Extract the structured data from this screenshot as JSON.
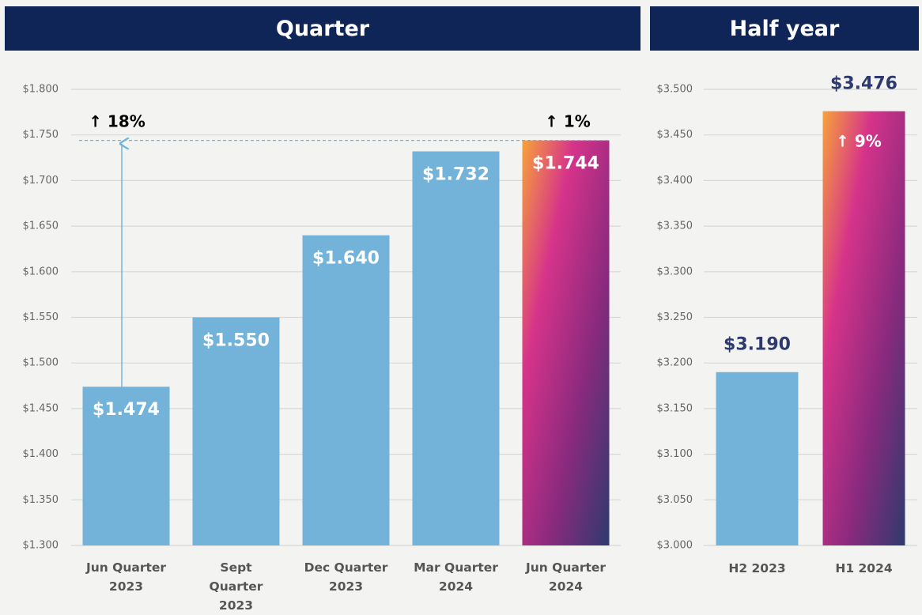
{
  "chart_data": [
    {
      "type": "bar",
      "title": "Quarter",
      "categories": [
        "Jun Quarter 2023",
        "Sept Quarter 2023",
        "Dec Quarter 2023",
        "Mar Quarter 2024",
        "Jun Quarter 2024"
      ],
      "values": [
        1.474,
        1.55,
        1.64,
        1.732,
        1.744
      ],
      "value_labels": [
        "$1.474",
        "$1.550",
        "$1.640",
        "$1.732",
        "$1.744"
      ],
      "colors": [
        "#74b3d9",
        "#74b3d9",
        "#74b3d9",
        "#74b3d9",
        "#d6338a"
      ],
      "ylim": [
        1.3,
        1.8
      ],
      "yticks": [
        {
          "value": 1.3,
          "label": "$1.300"
        },
        {
          "value": 1.35,
          "label": "$1.350"
        },
        {
          "value": 1.4,
          "label": "$1.400"
        },
        {
          "value": 1.45,
          "label": "$1.450"
        },
        {
          "value": 1.5,
          "label": "$1.500"
        },
        {
          "value": 1.55,
          "label": "$1.550"
        },
        {
          "value": 1.6,
          "label": "$1.600"
        },
        {
          "value": 1.65,
          "label": "$1.650"
        },
        {
          "value": 1.7,
          "label": "$1.700"
        },
        {
          "value": 1.75,
          "label": "$1.750"
        },
        {
          "value": 1.8,
          "label": "$1.800"
        }
      ],
      "grid": true,
      "annotations": [
        "↑ 18%",
        "↑ 1%"
      ]
    },
    {
      "type": "bar",
      "title": "Half year",
      "categories": [
        "H2 2023",
        "H1 2024"
      ],
      "values": [
        3.19,
        3.476
      ],
      "value_labels": [
        "$3.190",
        "$3.476"
      ],
      "colors": [
        "#74b3d9",
        "#d6338a"
      ],
      "ylim": [
        3.0,
        3.5
      ],
      "yticks": [
        {
          "value": 3.0,
          "label": "$3.000"
        },
        {
          "value": 3.05,
          "label": "$3.050"
        },
        {
          "value": 3.1,
          "label": "$3.100"
        },
        {
          "value": 3.15,
          "label": "$3.150"
        },
        {
          "value": 3.2,
          "label": "$3.200"
        },
        {
          "value": 3.25,
          "label": "$3.250"
        },
        {
          "value": 3.3,
          "label": "$3.300"
        },
        {
          "value": 3.35,
          "label": "$3.350"
        },
        {
          "value": 3.4,
          "label": "$3.400"
        },
        {
          "value": 3.45,
          "label": "$3.450"
        },
        {
          "value": 3.5,
          "label": "$3.500"
        }
      ],
      "grid": true,
      "annotations": [
        "↑ 9%"
      ]
    }
  ]
}
